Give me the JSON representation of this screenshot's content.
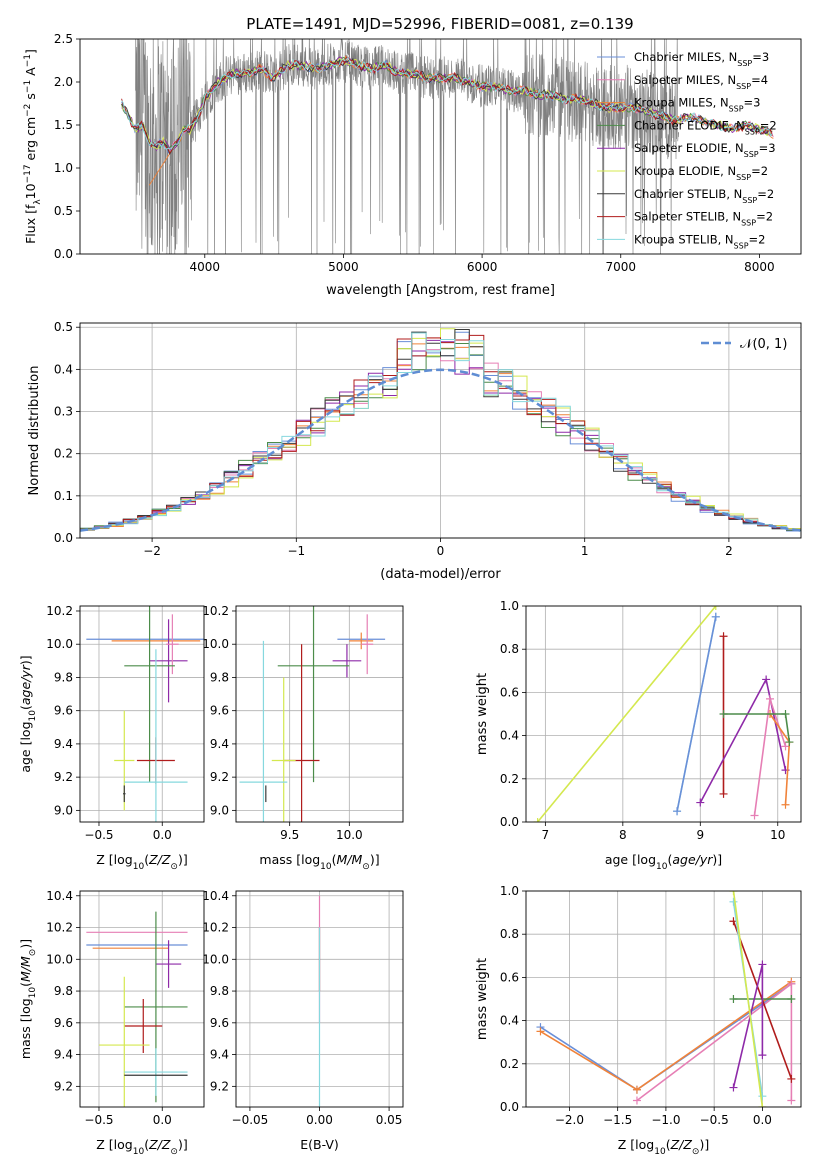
{
  "figure": {
    "title": "PLATE=1491, MJD=52996, FIBERID=0081, z=0.139"
  },
  "models": [
    {
      "name": "Chabrier MILES",
      "nssp": "3",
      "color": "#6a8fd8"
    },
    {
      "name": "Salpeter MILES",
      "nssp": "4",
      "color": "#e67fb5"
    },
    {
      "name": "Kroupa MILES",
      "nssp": "3",
      "color": "#f0833a"
    },
    {
      "name": "Chabrier ELODIE",
      "nssp": "2",
      "color": "#4c8c4a"
    },
    {
      "name": "Salpeter ELODIE",
      "nssp": "3",
      "color": "#8e2aa8"
    },
    {
      "name": "Kroupa ELODIE",
      "nssp": "2",
      "color": "#d4e84f"
    },
    {
      "name": "Chabrier STELIB",
      "nssp": "2",
      "color": "#3a3a3a"
    },
    {
      "name": "Salpeter STELIB",
      "nssp": "2",
      "color": "#b01c1c"
    },
    {
      "name": "Kroupa STELIB",
      "nssp": "2",
      "color": "#86d8de"
    }
  ],
  "chart_data": [
    {
      "id": "spectrum",
      "type": "line",
      "xlabel": "wavelength [Angstrom, rest frame]",
      "ylabel": "Flux [f_λ 10^-17 erg cm^-2 s^-1 A^-1]",
      "xlim": [
        3100,
        8300
      ],
      "ylim": [
        0,
        2.5
      ],
      "xticks": [
        4000,
        5000,
        6000,
        7000,
        8000
      ],
      "yticks": [
        0.0,
        0.5,
        1.0,
        1.5,
        2.0,
        2.5
      ],
      "grid": false,
      "legend": "upper-right",
      "data_color": "#808080",
      "data_range": [
        3500,
        7420
      ],
      "model_curve": {
        "x": [
          3400,
          3450,
          3500,
          3550,
          3600,
          3650,
          3700,
          3750,
          3800,
          3850,
          3900,
          3950,
          4000,
          4100,
          4200,
          4300,
          4400,
          4500,
          4600,
          4700,
          4800,
          4900,
          5000,
          5100,
          5200,
          5300,
          5400,
          5500,
          5600,
          5700,
          5800,
          5900,
          6000,
          6100,
          6200,
          6300,
          6400,
          6500,
          6600,
          6700,
          6800,
          6900,
          7000,
          7100,
          7200,
          7300,
          7400,
          7500,
          7600,
          7700,
          7800,
          7900,
          8000,
          8100
        ],
        "y": [
          1.75,
          1.6,
          1.45,
          1.5,
          1.3,
          1.25,
          1.3,
          1.2,
          1.3,
          1.45,
          1.45,
          1.6,
          1.8,
          2.0,
          2.1,
          2.1,
          2.15,
          2.05,
          2.2,
          2.2,
          2.15,
          2.2,
          2.25,
          2.2,
          2.15,
          2.2,
          2.1,
          2.1,
          2.05,
          2.05,
          2.05,
          2.0,
          1.95,
          1.95,
          1.9,
          1.9,
          1.85,
          1.85,
          1.8,
          1.8,
          1.75,
          1.7,
          1.7,
          1.7,
          1.65,
          1.6,
          1.55,
          1.6,
          1.55,
          1.5,
          1.45,
          1.5,
          1.45,
          1.4
        ]
      }
    },
    {
      "id": "residuals",
      "type": "step",
      "xlabel": "(data-model)/error",
      "ylabel": "Normed distribution",
      "xlim": [
        -2.5,
        2.5
      ],
      "ylim": [
        0,
        0.51
      ],
      "xticks": [
        -2,
        -1,
        0,
        1,
        2
      ],
      "yticks": [
        0.0,
        0.1,
        0.2,
        0.3,
        0.4,
        0.5
      ],
      "grid": true,
      "legend": "upper-right",
      "gaussian_label": "𝒩(0, 1)",
      "gaussian_color": "#5f8dd3",
      "bin_width": 0.1
    },
    {
      "id": "z-age",
      "type": "errorbar",
      "xlabel": "Z [log10(Z/Z⊙)]",
      "ylabel": "age  [log10(age/yr)]",
      "xlim": [
        -0.65,
        0.33
      ],
      "ylim": [
        8.93,
        10.23
      ],
      "xticks": [
        -0.5,
        0.0
      ],
      "yticks": [
        9.0,
        9.2,
        9.4,
        9.6,
        9.8,
        10.0,
        10.2
      ],
      "grid": true,
      "points": [
        {
          "model": 0,
          "x": -0.1,
          "xerr": 0.5,
          "y": 10.03,
          "yerr": 0.0
        },
        {
          "model": 2,
          "x": -0.05,
          "xerr": 0.35,
          "y": 10.02,
          "yerr": 0.0
        },
        {
          "model": 4,
          "x": 0.05,
          "xerr": 0.15,
          "y": 9.9,
          "yerr": 0.25
        },
        {
          "model": 1,
          "x": 0.08,
          "xerr": 0.05,
          "y": 10.0,
          "yerr": 0.18
        },
        {
          "model": 3,
          "x": -0.1,
          "xerr": 0.2,
          "y": 9.87,
          "yerr": 0.7
        },
        {
          "model": 7,
          "x": -0.05,
          "xerr": 0.15,
          "y": 9.3,
          "yerr": 0.14
        },
        {
          "model": 5,
          "x": -0.3,
          "xerr": 0.08,
          "y": 9.3,
          "yerr": 0.3
        },
        {
          "model": 8,
          "x": -0.05,
          "xerr": 0.25,
          "y": 9.17,
          "yerr": 0.8
        },
        {
          "model": 6,
          "x": -0.3,
          "xerr": 0.01,
          "y": 9.1,
          "yerr": 0.05
        }
      ]
    },
    {
      "id": "mass-age",
      "type": "errorbar",
      "xlabel": "mass [log10(M/M⊙)]",
      "ylabel": "",
      "xlim": [
        9.05,
        10.45
      ],
      "ylim": [
        8.93,
        10.23
      ],
      "xticks": [
        9.5,
        10.0
      ],
      "yticks": [
        9.0,
        9.2,
        9.4,
        9.6,
        9.8,
        10.0,
        10.2
      ],
      "grid": true,
      "points": [
        {
          "model": 0,
          "x": 10.1,
          "xerr": 0.2,
          "y": 10.03,
          "yerr": 0.0
        },
        {
          "model": 2,
          "x": 10.1,
          "xerr": 0.1,
          "y": 10.02,
          "yerr": 0.05
        },
        {
          "model": 1,
          "x": 10.15,
          "xerr": 0.05,
          "y": 10.0,
          "yerr": 0.18
        },
        {
          "model": 4,
          "x": 9.98,
          "xerr": 0.12,
          "y": 9.9,
          "yerr": 0.1
        },
        {
          "model": 3,
          "x": 9.7,
          "xerr": 0.3,
          "y": 9.87,
          "yerr": 0.7
        },
        {
          "model": 7,
          "x": 9.6,
          "xerr": 0.15,
          "y": 9.3,
          "yerr": 0.7
        },
        {
          "model": 5,
          "x": 9.45,
          "xerr": 0.1,
          "y": 9.3,
          "yerr": 0.5
        },
        {
          "model": 8,
          "x": 9.28,
          "xerr": 0.2,
          "y": 9.17,
          "yerr": 0.85
        },
        {
          "model": 6,
          "x": 9.3,
          "xerr": 0.0,
          "y": 9.1,
          "yerr": 0.05
        }
      ]
    },
    {
      "id": "age-weight",
      "type": "line",
      "xlabel": "age  [log10(age/yr)]",
      "ylabel": "mass weight",
      "xlim": [
        6.75,
        10.3
      ],
      "ylim": [
        0,
        1.0
      ],
      "xticks": [
        7,
        8,
        9,
        10
      ],
      "yticks": [
        0.0,
        0.2,
        0.4,
        0.6,
        0.8,
        1.0
      ],
      "grid": true,
      "series": [
        {
          "model": 5,
          "x": [
            6.9,
            9.2
          ],
          "y": [
            0.0,
            1.0
          ]
        },
        {
          "model": 8,
          "x": [
            8.7,
            9.2
          ],
          "y": [
            0.05,
            0.95
          ]
        },
        {
          "model": 0,
          "x": [
            8.7,
            9.2
          ],
          "y": [
            0.05,
            0.95
          ]
        },
        {
          "model": 7,
          "x": [
            9.3,
            9.3
          ],
          "y": [
            0.13,
            0.86
          ]
        },
        {
          "model": 4,
          "x": [
            9.0,
            9.85,
            10.1
          ],
          "y": [
            0.09,
            0.66,
            0.24
          ]
        },
        {
          "model": 1,
          "x": [
            9.7,
            9.9,
            10.1
          ],
          "y": [
            0.03,
            0.57,
            0.35
          ]
        },
        {
          "model": 2,
          "x": [
            9.9,
            10.15,
            10.1
          ],
          "y": [
            0.5,
            0.37,
            0.08
          ]
        },
        {
          "model": 3,
          "x": [
            9.3,
            10.1,
            10.15
          ],
          "y": [
            0.5,
            0.5,
            0.37
          ]
        }
      ]
    },
    {
      "id": "z-mass",
      "type": "errorbar",
      "xlabel": "Z [log10(Z/Z⊙)]",
      "ylabel": "mass [log10(M/M⊙)]",
      "xlim": [
        -0.65,
        0.33
      ],
      "ylim": [
        9.07,
        10.43
      ],
      "xticks": [
        -0.5,
        0.0
      ],
      "yticks": [
        9.2,
        9.4,
        9.6,
        9.8,
        10.0,
        10.2,
        10.4
      ],
      "grid": true,
      "points": [
        {
          "model": 1,
          "x": -0.2,
          "xerr": 0.4,
          "y": 10.17,
          "yerr": 0.0
        },
        {
          "model": 0,
          "x": -0.2,
          "xerr": 0.4,
          "y": 10.09,
          "yerr": 0.0
        },
        {
          "model": 2,
          "x": -0.25,
          "xerr": 0.3,
          "y": 10.07,
          "yerr": 0.0
        },
        {
          "model": 4,
          "x": 0.05,
          "xerr": 0.1,
          "y": 9.97,
          "yerr": 0.15
        },
        {
          "model": 3,
          "x": -0.05,
          "xerr": 0.25,
          "y": 9.7,
          "yerr": 0.6
        },
        {
          "model": 7,
          "x": -0.15,
          "xerr": 0.15,
          "y": 9.58,
          "yerr": 0.17
        },
        {
          "model": 5,
          "x": -0.3,
          "xerr": 0.2,
          "y": 9.46,
          "yerr": 0.43
        },
        {
          "model": 8,
          "x": -0.05,
          "xerr": 0.25,
          "y": 9.29,
          "yerr": 0.15
        },
        {
          "model": 6,
          "x": -0.05,
          "xerr": 0.25,
          "y": 9.27,
          "yerr": 0.0
        }
      ]
    },
    {
      "id": "ebv-mass",
      "type": "errorbar",
      "xlabel": "E(B-V)",
      "ylabel": "",
      "xlim": [
        -0.06,
        0.06
      ],
      "ylim": [
        9.07,
        10.43
      ],
      "xticks": [
        -0.05,
        0.0,
        0.05
      ],
      "yticks": [
        9.2,
        9.4,
        9.6,
        9.8,
        10.0,
        10.2,
        10.4
      ],
      "grid": true,
      "points": [
        {
          "model": 1,
          "x": 0.0,
          "xerr": 0.0,
          "y": 10.0,
          "yerr": 0.4
        },
        {
          "model": 7,
          "x": 0.0,
          "xerr": 0.0,
          "y": 10.0,
          "yerr": 0.2
        },
        {
          "model": 8,
          "x": 0.0,
          "xerr": 0.0,
          "y": 9.5,
          "yerr": 0.7
        }
      ]
    },
    {
      "id": "z-weight",
      "type": "line",
      "xlabel": "Z [log10(Z/Z⊙)]",
      "ylabel": "mass weight",
      "xlim": [
        -2.45,
        0.4
      ],
      "ylim": [
        0,
        1.0
      ],
      "xticks": [
        -2.0,
        -1.5,
        -1.0,
        -0.5,
        0.0
      ],
      "yticks": [
        0.0,
        0.2,
        0.4,
        0.6,
        0.8,
        1.0
      ],
      "grid": true,
      "series": [
        {
          "model": 0,
          "x": [
            -2.3,
            -1.3,
            0.3
          ],
          "y": [
            0.37,
            0.08,
            0.57
          ]
        },
        {
          "model": 2,
          "x": [
            -2.3,
            -1.3,
            0.3
          ],
          "y": [
            0.35,
            0.08,
            0.58
          ]
        },
        {
          "model": 1,
          "x": [
            -1.3,
            0.3,
            0.3
          ],
          "y": [
            0.03,
            0.57,
            0.03
          ]
        },
        {
          "model": 3,
          "x": [
            -0.3,
            0.3
          ],
          "y": [
            0.5,
            0.5
          ]
        },
        {
          "model": 7,
          "x": [
            -0.3,
            0.3
          ],
          "y": [
            0.86,
            0.13
          ]
        },
        {
          "model": 4,
          "x": [
            -0.3,
            0.0,
            0.0
          ],
          "y": [
            0.09,
            0.66,
            0.24
          ]
        },
        {
          "model": 8,
          "x": [
            -0.3,
            0.0
          ],
          "y": [
            0.95,
            0.05
          ]
        },
        {
          "model": 5,
          "x": [
            -0.3,
            0.0
          ],
          "y": [
            1.0,
            0.0
          ]
        }
      ]
    }
  ]
}
